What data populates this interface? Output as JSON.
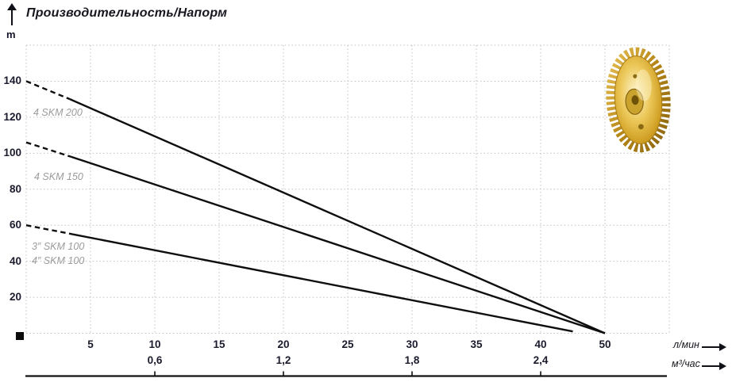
{
  "header": {
    "title": "Производительность/Напорм",
    "y_unit": "m"
  },
  "axis_units": {
    "flow_lmin": "л/мин",
    "flow_m3h": "м³/час"
  },
  "curve_labels": [
    {
      "text": "4 SKM 200"
    },
    {
      "text": "4 SKM 150"
    },
    {
      "text": "3″ SKM 100"
    },
    {
      "text": "4″ SKM 100"
    }
  ],
  "chart_data": {
    "type": "line",
    "title": "Производительность/Напорм",
    "ylabel": "m",
    "xlabel_primary": "л/мин",
    "xlabel_secondary": "м³/час",
    "grid": true,
    "y_axis": {
      "max": 160,
      "tick_labels": [
        20,
        40,
        60,
        80,
        100,
        120,
        140
      ]
    },
    "x_axis_1": {
      "unit": "л/мин",
      "ticks": [
        {
          "v": 0,
          "label": ""
        },
        {
          "v": 5,
          "label": "5"
        },
        {
          "v": 10,
          "label": "10"
        },
        {
          "v": 15,
          "label": "15"
        },
        {
          "v": 20,
          "label": "20"
        },
        {
          "v": 25,
          "label": "25"
        },
        {
          "v": 30,
          "label": "30"
        },
        {
          "v": 35,
          "label": "35"
        },
        {
          "v": 40,
          "label": "40"
        },
        {
          "v": 50,
          "label": "50"
        },
        {
          "v": 60,
          "label": ""
        }
      ]
    },
    "x_axis_2": {
      "unit": "м³/час",
      "lmin_per_m3h": 16.6667,
      "ticks": [
        {
          "v": 0.6,
          "label": "0,6"
        },
        {
          "v": 1.2,
          "label": "1,2"
        },
        {
          "v": 1.8,
          "label": "1,8"
        },
        {
          "v": 2.4,
          "label": "2,4"
        }
      ]
    },
    "series": [
      {
        "name": "4 SKM 200",
        "dashed_until": 1,
        "points": [
          [
            0,
            140
          ],
          [
            3.4,
            130
          ],
          [
            50,
            0
          ]
        ]
      },
      {
        "name": "4 SKM 150",
        "dashed_until": 1,
        "points": [
          [
            0,
            106
          ],
          [
            3.5,
            98
          ],
          [
            50,
            0
          ]
        ]
      },
      {
        "name": "3″/4″ SKM 100",
        "dashed_until": 1,
        "points": [
          [
            0,
            60
          ],
          [
            3.6,
            55
          ],
          [
            45,
            1
          ]
        ]
      }
    ]
  }
}
